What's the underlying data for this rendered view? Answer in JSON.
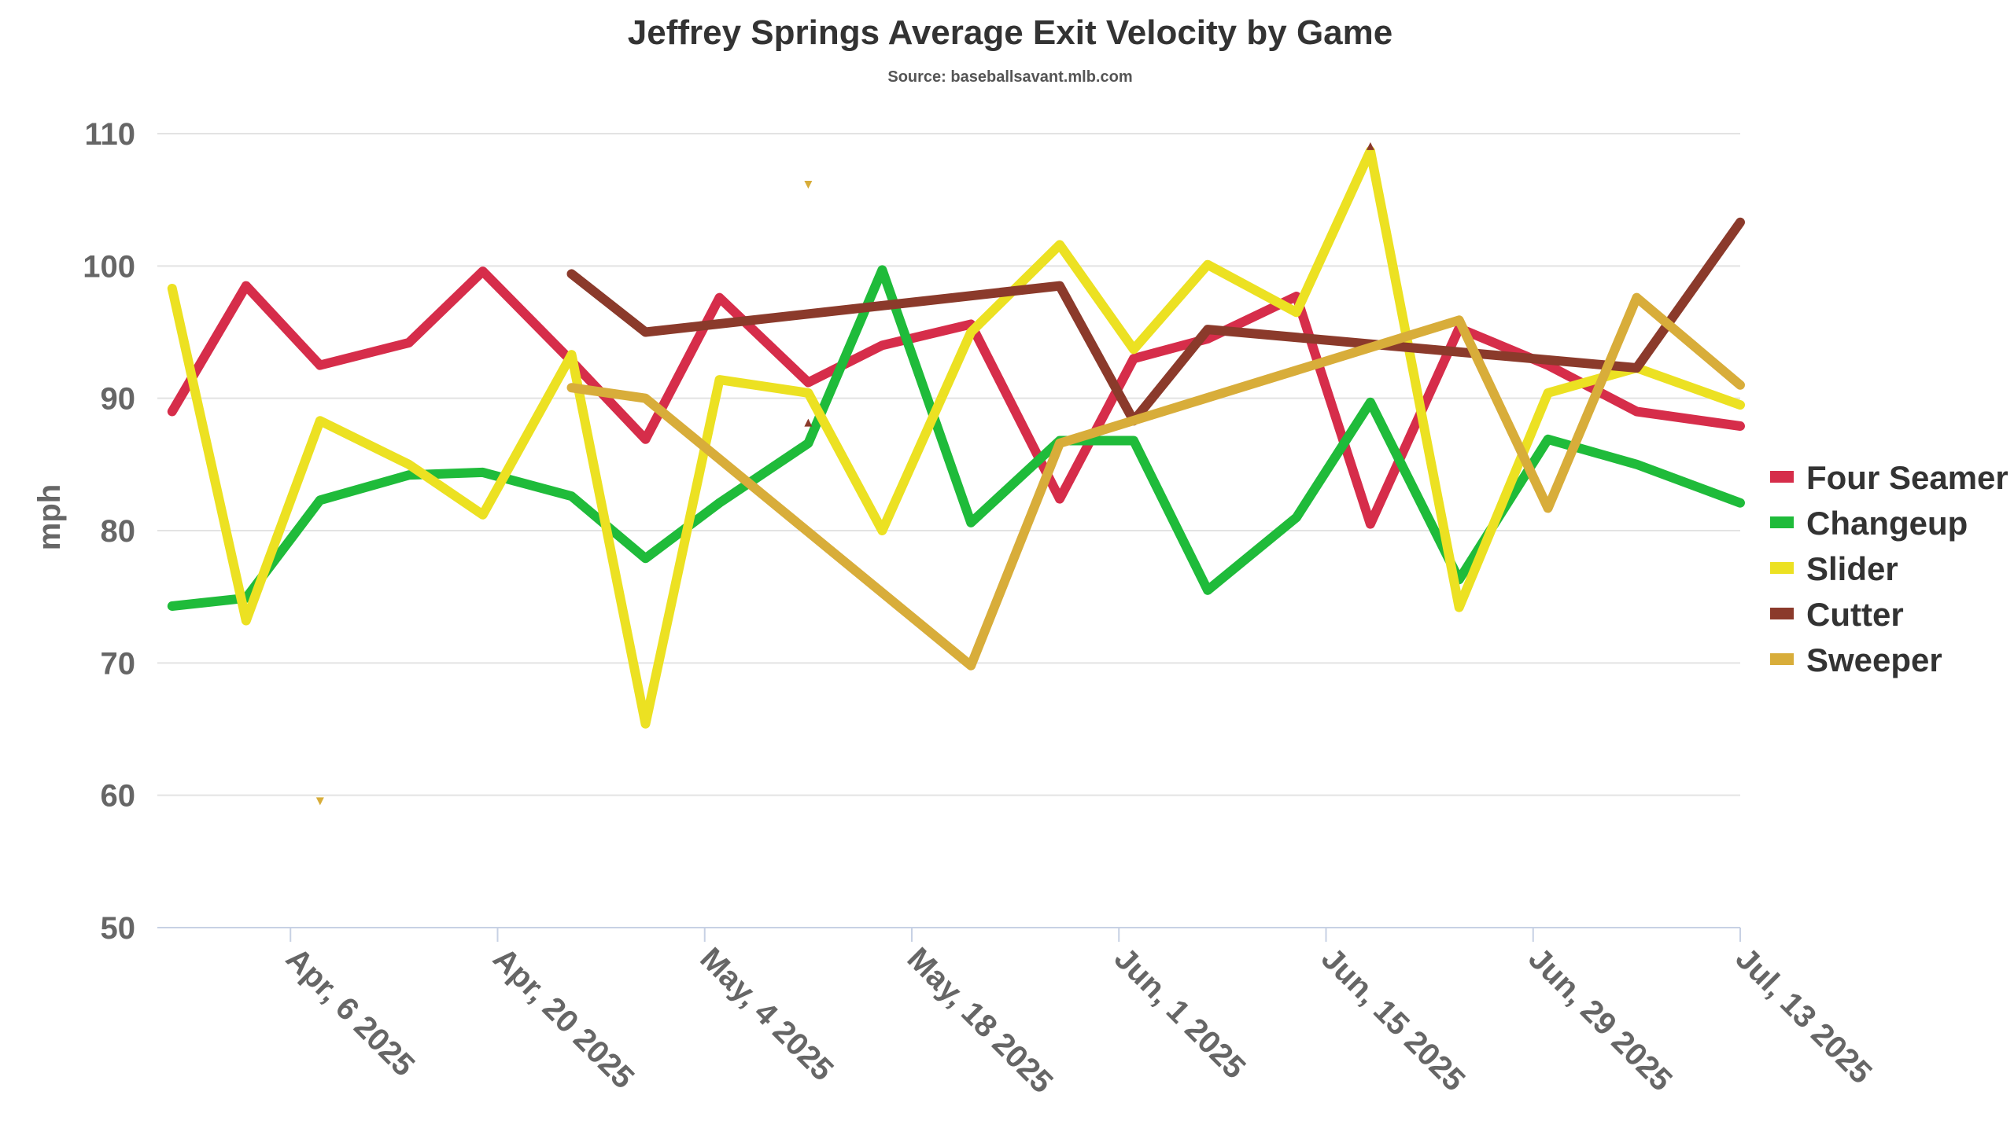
{
  "chart_data": {
    "type": "line",
    "title": "Jeffrey Springs Average Exit Velocity by Game",
    "subtitle": "Source: baseballsavant.mlb.com",
    "ylabel": "mph",
    "xlabel": "",
    "ylim": [
      50,
      110
    ],
    "y_ticks": [
      50,
      60,
      70,
      80,
      90,
      100,
      110
    ],
    "x_range": [
      "2025-03-28",
      "2025-07-13"
    ],
    "x_ticks": [
      {
        "date": "2025-04-06",
        "label": "Apr, 6 2025"
      },
      {
        "date": "2025-04-20",
        "label": "Apr, 20 2025"
      },
      {
        "date": "2025-05-04",
        "label": "May, 4 2025"
      },
      {
        "date": "2025-05-18",
        "label": "May, 18 2025"
      },
      {
        "date": "2025-06-01",
        "label": "Jun, 1 2025"
      },
      {
        "date": "2025-06-15",
        "label": "Jun, 15 2025"
      },
      {
        "date": "2025-06-29",
        "label": "Jun, 29 2025"
      },
      {
        "date": "2025-07-13",
        "label": "Jul, 13 2025"
      }
    ],
    "grid": true,
    "legend_position": "right",
    "series": [
      {
        "name": "Four Seamer",
        "color": "#d62d4a",
        "points": [
          {
            "x": "2025-03-29",
            "y": 89.0
          },
          {
            "x": "2025-04-03",
            "y": 98.5
          },
          {
            "x": "2025-04-08",
            "y": 92.5
          },
          {
            "x": "2025-04-14",
            "y": 94.2
          },
          {
            "x": "2025-04-19",
            "y": 99.6
          },
          {
            "x": "2025-04-25",
            "y": 92.8
          },
          {
            "x": "2025-04-30",
            "y": 86.9
          },
          {
            "x": "2025-05-05",
            "y": 97.6
          },
          {
            "x": "2025-05-11",
            "y": 91.2
          },
          {
            "x": "2025-05-16",
            "y": 94.0
          },
          {
            "x": "2025-05-22",
            "y": 95.6
          },
          {
            "x": "2025-05-28",
            "y": 82.4
          },
          {
            "x": "2025-06-02",
            "y": 93.0
          },
          {
            "x": "2025-06-07",
            "y": 94.5
          },
          {
            "x": "2025-06-13",
            "y": 97.7
          },
          {
            "x": "2025-06-18",
            "y": 80.5
          },
          {
            "x": "2025-06-24",
            "y": 95.3
          },
          {
            "x": "2025-06-30",
            "y": 92.5
          },
          {
            "x": "2025-07-06",
            "y": 89.0
          },
          {
            "x": "2025-07-13",
            "y": 87.9
          }
        ]
      },
      {
        "name": "Changeup",
        "color": "#1fbb3a",
        "points": [
          {
            "x": "2025-03-29",
            "y": 74.3
          },
          {
            "x": "2025-04-03",
            "y": 74.9
          },
          {
            "x": "2025-04-08",
            "y": 82.3
          },
          {
            "x": "2025-04-14",
            "y": 84.2
          },
          {
            "x": "2025-04-19",
            "y": 84.4
          },
          {
            "x": "2025-04-25",
            "y": 82.6
          },
          {
            "x": "2025-04-30",
            "y": 77.9
          },
          {
            "x": "2025-05-05",
            "y": 82.1
          },
          {
            "x": "2025-05-11",
            "y": 86.6
          },
          {
            "x": "2025-05-16",
            "y": 99.7
          },
          {
            "x": "2025-05-22",
            "y": 80.6
          },
          {
            "x": "2025-05-28",
            "y": 86.8
          },
          {
            "x": "2025-06-02",
            "y": 86.8
          },
          {
            "x": "2025-06-07",
            "y": 75.5
          },
          {
            "x": "2025-06-13",
            "y": 81.0
          },
          {
            "x": "2025-06-18",
            "y": 89.7
          },
          {
            "x": "2025-06-24",
            "y": 76.3
          },
          {
            "x": "2025-06-30",
            "y": 86.9
          },
          {
            "x": "2025-07-06",
            "y": 85.0
          },
          {
            "x": "2025-07-13",
            "y": 82.1
          }
        ]
      },
      {
        "name": "Slider",
        "color": "#ece122",
        "points": [
          {
            "x": "2025-03-29",
            "y": 98.3
          },
          {
            "x": "2025-04-03",
            "y": 73.2
          },
          {
            "x": "2025-04-08",
            "y": 88.3
          },
          {
            "x": "2025-04-14",
            "y": 85.0
          },
          {
            "x": "2025-04-19",
            "y": 81.2
          },
          {
            "x": "2025-04-25",
            "y": 93.3
          },
          {
            "x": "2025-04-30",
            "y": 65.4
          },
          {
            "x": "2025-05-05",
            "y": 91.4
          },
          {
            "x": "2025-05-11",
            "y": 90.4
          },
          {
            "x": "2025-05-16",
            "y": 80.0
          },
          {
            "x": "2025-05-22",
            "y": 95.0
          },
          {
            "x": "2025-05-28",
            "y": 101.6
          },
          {
            "x": "2025-06-02",
            "y": 93.7
          },
          {
            "x": "2025-06-07",
            "y": 100.1
          },
          {
            "x": "2025-06-13",
            "y": 96.5
          },
          {
            "x": "2025-06-18",
            "y": 108.7
          },
          {
            "x": "2025-06-24",
            "y": 74.2
          },
          {
            "x": "2025-06-30",
            "y": 90.4
          },
          {
            "x": "2025-07-06",
            "y": 92.3
          },
          {
            "x": "2025-07-13",
            "y": 89.5
          }
        ]
      },
      {
        "name": "Cutter",
        "color": "#8b3a2b",
        "points": [
          {
            "x": "2025-04-25",
            "y": 99.4
          },
          {
            "x": "2025-04-30",
            "y": 95.0
          },
          {
            "x": "2025-05-11",
            "y": 88.1,
            "marker": "up"
          },
          {
            "x": "2025-05-28",
            "y": 98.5
          },
          {
            "x": "2025-06-02",
            "y": 88.3
          },
          {
            "x": "2025-06-07",
            "y": 95.2
          },
          {
            "x": "2025-06-18",
            "y": 109.0,
            "marker": "up"
          },
          {
            "x": "2025-07-06",
            "y": 92.3
          },
          {
            "x": "2025-07-13",
            "y": 103.3
          }
        ]
      },
      {
        "name": "Sweeper",
        "color": "#d8ad3a",
        "points": [
          {
            "x": "2025-04-08",
            "y": 59.6,
            "marker": "down"
          },
          {
            "x": "2025-04-25",
            "y": 90.8
          },
          {
            "x": "2025-04-30",
            "y": 90.0
          },
          {
            "x": "2025-05-11",
            "y": 106.2,
            "marker": "down"
          },
          {
            "x": "2025-05-22",
            "y": 69.8
          },
          {
            "x": "2025-05-28",
            "y": 86.6
          },
          {
            "x": "2025-06-24",
            "y": 95.9
          },
          {
            "x": "2025-06-30",
            "y": 81.7
          },
          {
            "x": "2025-07-06",
            "y": 97.6
          },
          {
            "x": "2025-07-13",
            "y": 91.0
          }
        ]
      }
    ]
  }
}
